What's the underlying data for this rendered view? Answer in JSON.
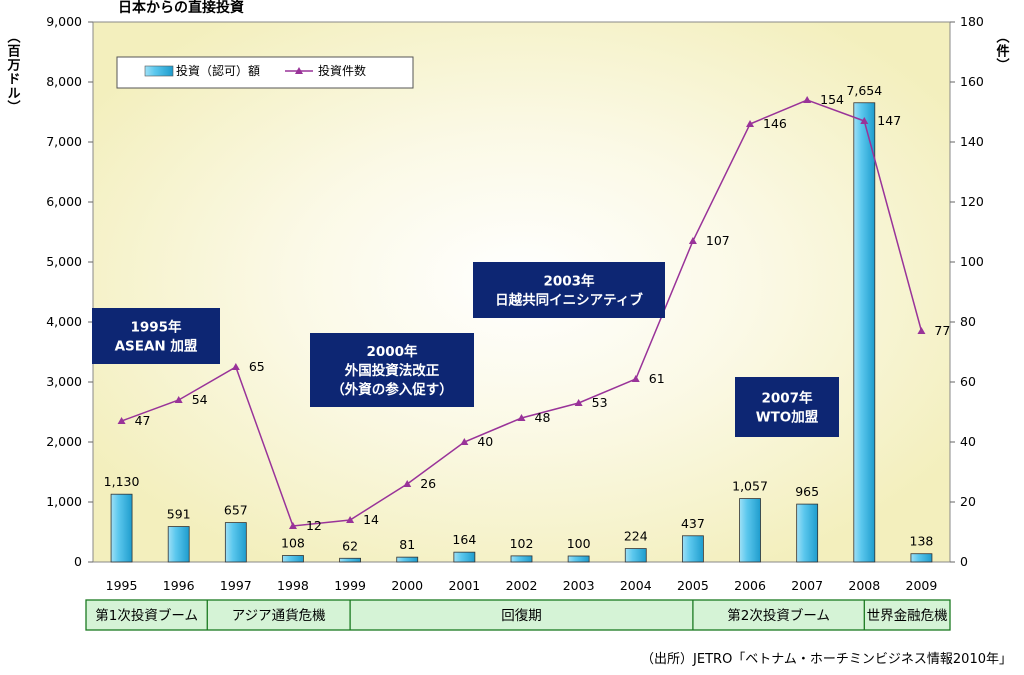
{
  "chart_data": {
    "type": "bar+line",
    "title": "日本からの直接投資",
    "left_axis": {
      "label": "（百万ドル）",
      "ticks": [
        "0",
        "1,000",
        "2,000",
        "3,000",
        "4,000",
        "5,000",
        "6,000",
        "7,000",
        "8,000",
        "9,000"
      ],
      "ylim": [
        0,
        9000
      ]
    },
    "right_axis": {
      "label": "（件）",
      "ticks": [
        "0",
        "20",
        "40",
        "60",
        "80",
        "100",
        "120",
        "140",
        "160",
        "180"
      ],
      "ylim": [
        0,
        180
      ]
    },
    "categories": [
      "1995",
      "1996",
      "1997",
      "1998",
      "1999",
      "2000",
      "2001",
      "2002",
      "2003",
      "2004",
      "2005",
      "2006",
      "2007",
      "2008",
      "2009"
    ],
    "series": [
      {
        "name": "投資（認可）額",
        "kind": "bar",
        "axis": "left",
        "color": "#3fb6e0",
        "values": [
          1130,
          591,
          657,
          108,
          62,
          81,
          164,
          102,
          100,
          224,
          437,
          1057,
          965,
          7654,
          138
        ],
        "labels": [
          "1,130",
          "591",
          "657",
          "108",
          "62",
          "81",
          "164",
          "102",
          "100",
          "224",
          "437",
          "1,057",
          "965",
          "7,654",
          "138"
        ]
      },
      {
        "name": "投資件数",
        "kind": "line",
        "axis": "right",
        "color": "#993399",
        "values": [
          47,
          54,
          65,
          12,
          14,
          26,
          40,
          48,
          53,
          61,
          107,
          146,
          154,
          147,
          77
        ],
        "labels": [
          "47",
          "54",
          "65",
          "12",
          "14",
          "26",
          "40",
          "48",
          "53",
          "61",
          "107",
          "146",
          "154",
          "147",
          "77"
        ]
      }
    ],
    "legend_position": "top-left",
    "annotations": [
      {
        "lines": [
          "1995年",
          "ASEAN 加盟"
        ]
      },
      {
        "lines": [
          "2000年",
          "外国投資法改正",
          "（外資の参入促す）"
        ]
      },
      {
        "lines": [
          "2003年",
          "日越共同イニシアティブ"
        ]
      },
      {
        "lines": [
          "2007年",
          "WTO加盟"
        ]
      }
    ],
    "periods": [
      {
        "label": "第1次投資ブーム"
      },
      {
        "label": "アジア通貨危機"
      },
      {
        "label": "回復期"
      },
      {
        "label": "第2次投資ブーム"
      },
      {
        "label": "世界金融危機"
      }
    ],
    "source": "（出所）JETRO「ベトナム・ホーチミンビジネス情報2010年」",
    "colors": {
      "plot_bg": "#f6f2c4",
      "annotation_bg": "#0d2673",
      "period_bg": "#d5f3d6",
      "period_border": "#1a7a20"
    }
  }
}
